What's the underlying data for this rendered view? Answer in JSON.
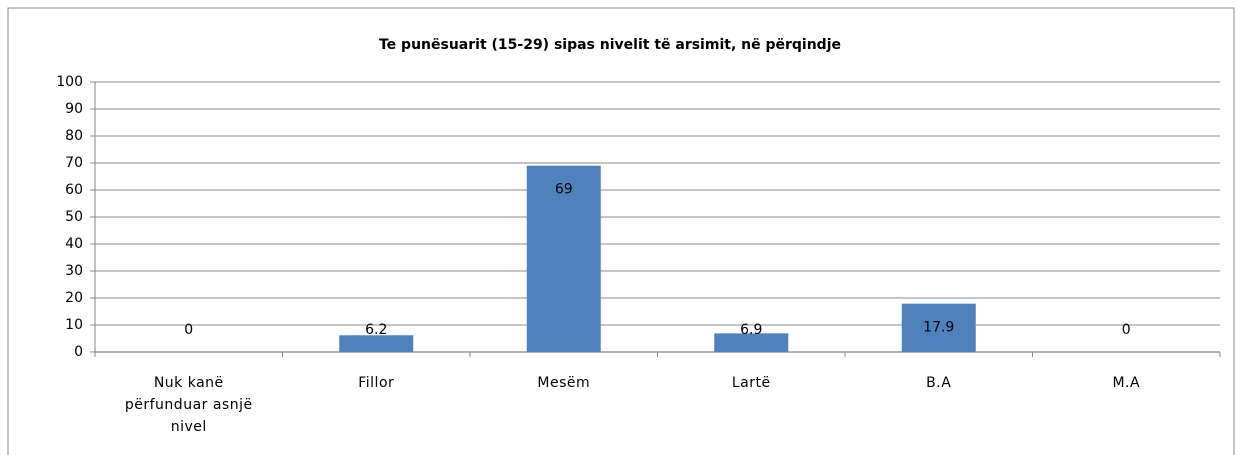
{
  "chart_data": {
    "type": "bar",
    "title": "Te punësuarit  (15-29) sipas nivelit të arsimit, në përqindje",
    "categories": [
      "Nuk kanë përfunduar asnjë nivel",
      "Fillor",
      "Mesëm",
      "Lartë",
      "B.A",
      "M.A"
    ],
    "values": [
      0,
      6.2,
      69,
      6.9,
      17.9,
      0
    ],
    "color": "#4f81bd",
    "ylim": [
      0,
      100
    ],
    "yticks": [
      0,
      10,
      20,
      30,
      40,
      50,
      60,
      70,
      80,
      90,
      100
    ],
    "grid": true
  }
}
